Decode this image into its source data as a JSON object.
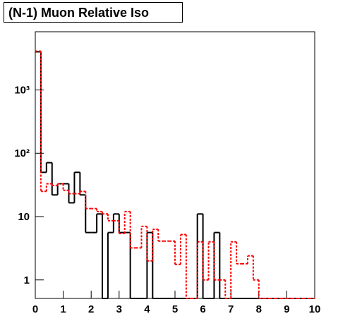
{
  "chart_data": {
    "type": "histogram",
    "title": "(N-1) Muon Relative Iso",
    "bins": [
      0,
      0.2,
      0.4,
      0.6,
      0.8,
      1,
      1.2,
      1.4,
      1.6,
      1.8,
      2,
      2.2,
      2.4,
      2.6,
      2.8,
      3,
      3.2,
      3.4,
      3.6,
      3.8,
      4,
      4.2,
      4.4,
      4.6,
      4.8,
      5,
      5.2,
      5.4,
      5.6,
      5.8,
      6,
      6.2,
      6.4,
      6.6,
      6.8,
      7,
      7.2,
      7.4,
      7.6,
      7.8,
      8,
      8.2,
      8.4,
      8.6,
      8.8,
      9,
      9.2,
      9.4,
      9.6,
      9.8,
      10
    ],
    "series": [
      {
        "color": "#000000",
        "dashed": false,
        "values": [
          4000,
          50,
          71,
          22,
          33,
          33,
          16.5,
          50,
          22,
          5.6,
          5.6,
          11,
          0,
          5.6,
          11,
          5.6,
          5.6,
          0,
          0,
          0,
          5.6,
          0,
          0,
          0,
          0,
          0,
          0,
          0,
          0,
          11,
          0,
          0,
          5.6,
          0,
          0,
          0,
          0,
          0,
          0,
          0,
          0,
          0,
          0,
          0,
          0,
          0,
          0,
          0,
          0,
          0
        ]
      },
      {
        "color": "#ff0000",
        "dashed": true,
        "values": [
          4100,
          25,
          33,
          31,
          33,
          26,
          23,
          23,
          25,
          13.4,
          13.4,
          12,
          11,
          8.6,
          8.6,
          5.4,
          12,
          3.2,
          3.2,
          7,
          2,
          6.3,
          4.1,
          4.1,
          4.1,
          1.76,
          5.2,
          0,
          0,
          4,
          1,
          4,
          1,
          1,
          0,
          4,
          1.8,
          1.8,
          2.4,
          1,
          0,
          0,
          0,
          0,
          0,
          0,
          0,
          0,
          0,
          0
        ]
      }
    ],
    "xlim": [
      0,
      10
    ],
    "xticks": [
      0,
      1,
      2,
      3,
      4,
      5,
      6,
      7,
      8,
      9,
      10
    ],
    "ylim": [
      0.51,
      8300
    ],
    "ylog": true,
    "yticks": [
      1,
      10,
      {
        "value": 100,
        "label": "10²"
      },
      {
        "value": 1000,
        "label": "10³"
      }
    ]
  }
}
